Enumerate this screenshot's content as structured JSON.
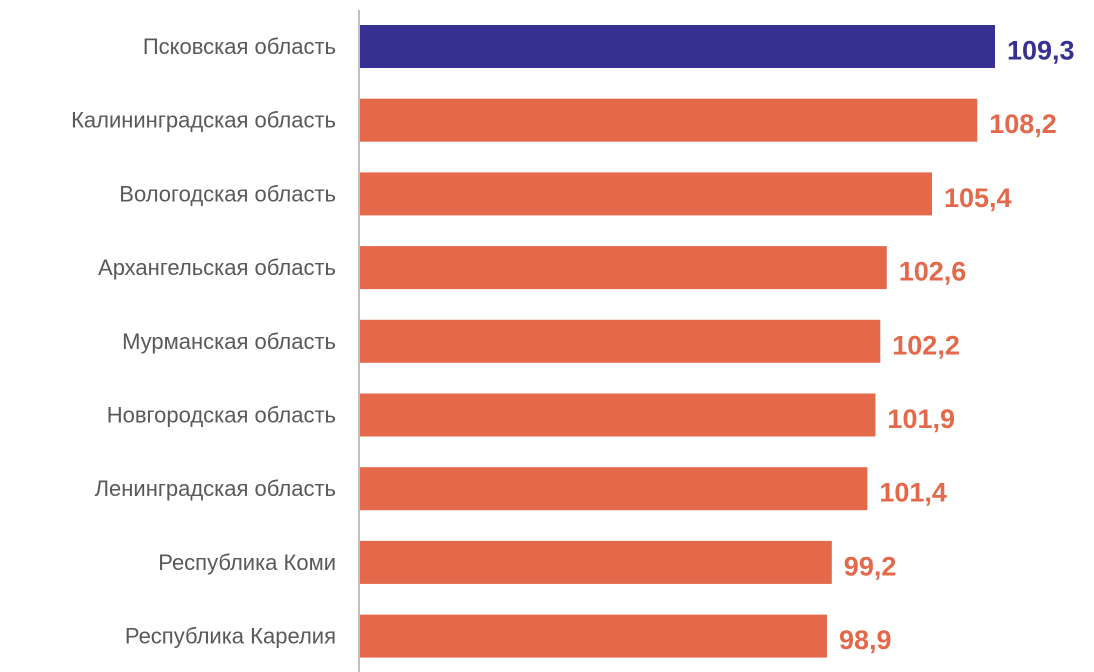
{
  "chart_data": {
    "type": "bar",
    "orientation": "horizontal",
    "title": "",
    "xlabel": "",
    "ylabel": "",
    "categories": [
      "Псковская область",
      "Калининградская область",
      "Вологодская область",
      "Архангельская область",
      "Мурманская область",
      "Новгородская область",
      "Ленинградская область",
      "Республика Коми",
      "Республика Карелия"
    ],
    "values": [
      109.3,
      108.2,
      105.4,
      102.6,
      102.2,
      101.9,
      101.4,
      99.2,
      98.9
    ],
    "value_labels": [
      "109,3",
      "108,2",
      "105,4",
      "102,6",
      "102,2",
      "101,9",
      "101,4",
      "99,2",
      "98,9"
    ],
    "highlight_index": 0,
    "xlim": [
      70,
      109.3
    ],
    "grid": false,
    "colors": {
      "highlight": "#373093",
      "default": "#E4684A",
      "axis": "#BFBFBF",
      "category_text": "#595959"
    }
  }
}
